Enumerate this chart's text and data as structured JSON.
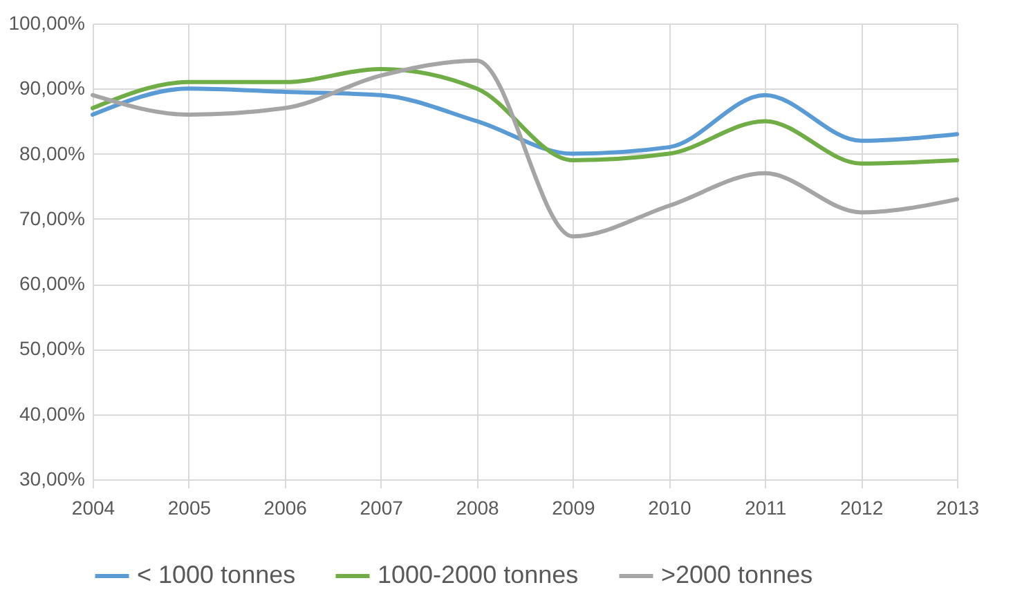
{
  "chart_data": {
    "type": "line",
    "categories": [
      "2004",
      "2005",
      "2006",
      "2007",
      "2008",
      "2009",
      "2010",
      "2011",
      "2012",
      "2013"
    ],
    "series": [
      {
        "name": "< 1000 tonnes",
        "color": "#5b9bd5",
        "values": [
          86,
          90,
          89.5,
          89,
          85,
          80,
          81,
          89,
          82,
          83
        ]
      },
      {
        "name": "1000-2000 tonnes",
        "color": "#70ad47",
        "values": [
          87,
          91,
          91,
          93,
          90,
          79,
          80,
          85,
          78.5,
          79
        ]
      },
      {
        "name": ">2000 tonnes",
        "color": "#a5a5a5",
        "values": [
          89,
          86,
          87,
          92,
          94.3,
          67.3,
          72,
          77,
          71,
          73
        ]
      }
    ],
    "ylim": [
      30,
      100
    ],
    "yticks": [
      {
        "value": 30,
        "label": "30,00%"
      },
      {
        "value": 40,
        "label": "40,00%"
      },
      {
        "value": 50,
        "label": "50,00%"
      },
      {
        "value": 60,
        "label": "60,00%"
      },
      {
        "value": 70,
        "label": "70,00%"
      },
      {
        "value": 80,
        "label": "80,00%"
      },
      {
        "value": 90,
        "label": "90,00%"
      },
      {
        "value": 100,
        "label": "100,00%"
      }
    ],
    "grid": true,
    "legend": "bottom",
    "marker": "none",
    "line_style": "solid"
  }
}
